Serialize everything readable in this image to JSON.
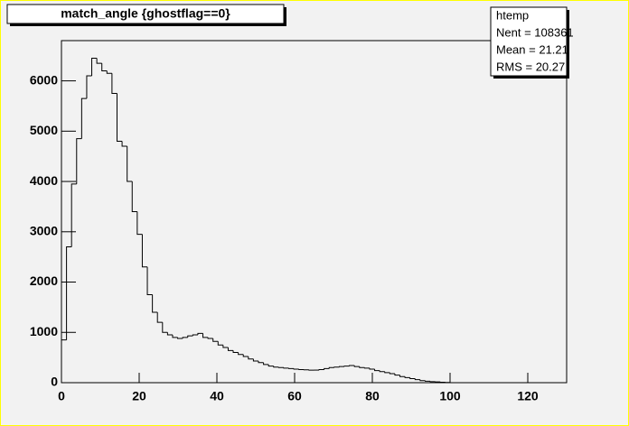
{
  "chart_data": {
    "type": "histogram",
    "title": "match_angle {ghostflag==0}",
    "stats": [
      "htemp",
      "Nent = 108361",
      "Mean  =  21.21",
      "RMS   =  20.27"
    ],
    "bins": [
      0,
      1.3,
      2.6,
      3.9,
      5.2,
      6.5,
      7.8,
      9.1,
      10.4,
      11.7,
      13,
      14.3,
      15.6,
      16.9,
      18.2,
      19.5,
      20.8,
      22.1,
      23.4,
      24.7,
      26,
      27.3,
      28.6,
      29.9,
      31.2,
      32.5,
      33.8,
      35.1,
      36.4,
      37.7,
      39,
      40.3,
      41.6,
      42.9,
      44.2,
      45.5,
      46.8,
      48.1,
      49.4,
      50.7,
      52,
      53.3,
      54.6,
      55.9,
      57.2,
      58.5,
      59.8,
      61.1,
      62.4,
      63.7,
      65,
      66.3,
      67.6,
      68.9,
      70.2,
      71.5,
      72.8,
      74.1,
      75.4,
      76.7,
      78,
      79.3,
      80.6,
      81.9,
      83.2,
      84.5,
      85.8,
      87.1,
      88.4,
      89.7,
      91,
      92.3,
      93.6,
      94.9,
      96.2,
      97.5,
      98.8,
      100.1,
      101.4,
      102.7,
      104,
      105.3,
      106.6,
      107.9,
      109.2,
      110.5,
      111.8,
      113.1,
      114.4,
      115.7,
      117,
      118.3,
      119.6,
      120.9,
      122.2,
      123.5,
      124.8,
      126.1,
      127.4,
      128.7,
      130
    ],
    "values": [
      850,
      2700,
      3950,
      4850,
      5650,
      6100,
      6450,
      6350,
      6200,
      6150,
      5750,
      4800,
      4700,
      4000,
      3400,
      2950,
      2300,
      1750,
      1400,
      1200,
      1000,
      950,
      900,
      880,
      900,
      930,
      950,
      980,
      900,
      880,
      820,
      750,
      700,
      640,
      600,
      560,
      520,
      470,
      430,
      400,
      360,
      330,
      310,
      300,
      290,
      280,
      270,
      260,
      255,
      250,
      250,
      260,
      280,
      300,
      310,
      320,
      330,
      340,
      320,
      300,
      290,
      270,
      240,
      220,
      200,
      180,
      150,
      120,
      100,
      80,
      60,
      40,
      30,
      20,
      15,
      10,
      5,
      0,
      0,
      0,
      0,
      0,
      0,
      0,
      0,
      0,
      0,
      0,
      0,
      0,
      0,
      0,
      0,
      0,
      0,
      0,
      0,
      0,
      0,
      0
    ],
    "color": "#000000",
    "xlim": [
      0,
      130
    ],
    "xticks": [
      0,
      20,
      40,
      60,
      80,
      100,
      120
    ],
    "ylim": [
      0,
      6800
    ],
    "yticks": [
      0,
      1000,
      2000,
      3000,
      4000,
      5000,
      6000
    ]
  }
}
